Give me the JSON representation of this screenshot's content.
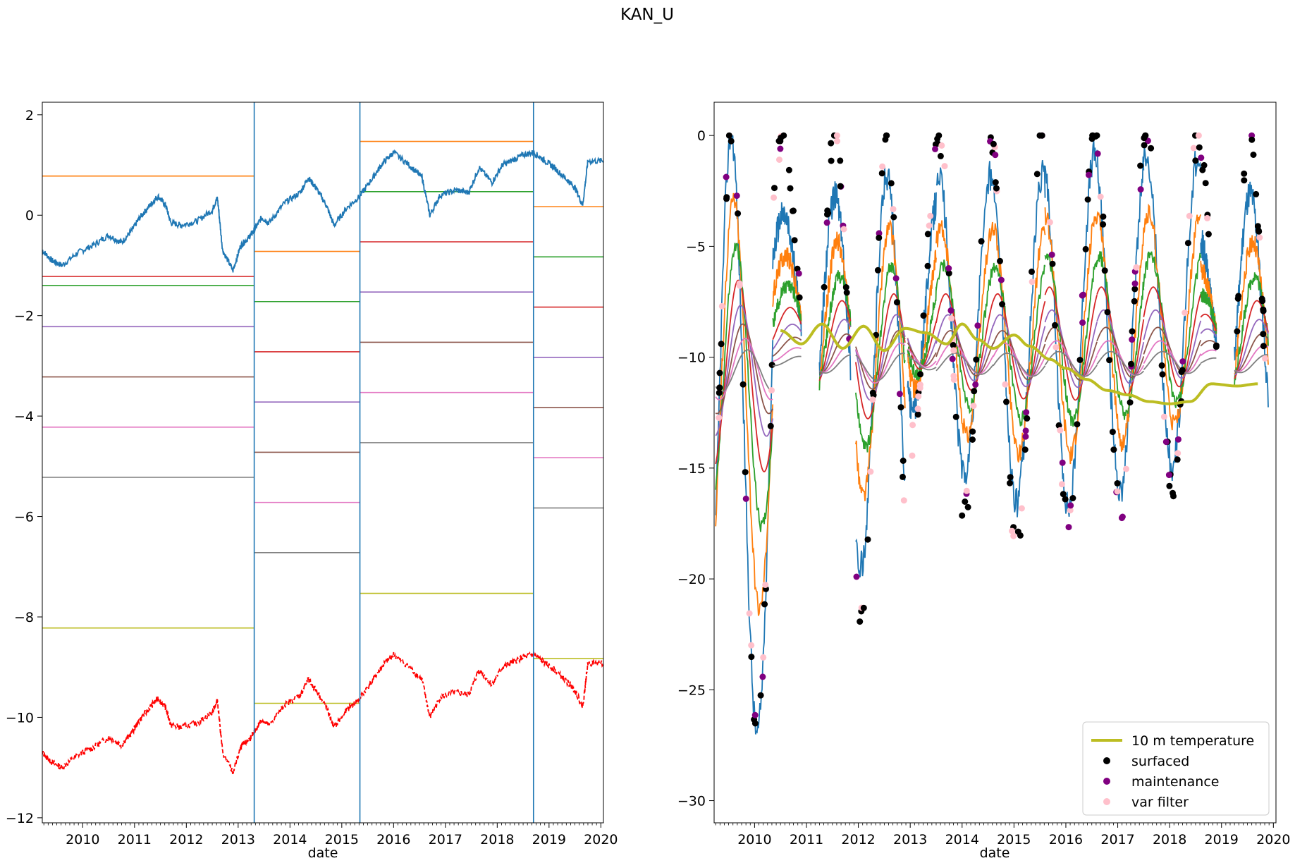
{
  "figure": {
    "title": "KAN_U"
  },
  "chart_data": [
    {
      "type": "line",
      "title": "",
      "xlabel": "date",
      "ylabel": "",
      "xlim": [
        2009.22,
        2020.05
      ],
      "ylim": [
        -12.1,
        2.25
      ],
      "xticks": [
        2010,
        2011,
        2012,
        2013,
        2014,
        2015,
        2016,
        2017,
        2018,
        2019,
        2020
      ],
      "yticks": [
        -12,
        -10,
        -8,
        -6,
        -4,
        -2,
        0,
        2
      ],
      "grid": false,
      "segment_boundaries": [
        2013.31,
        2015.35,
        2018.7
      ],
      "colors": [
        "#ff7f0e",
        "#d62728",
        "#2ca02c",
        "#9467bd",
        "#8c564b",
        "#e377c2",
        "#7f7f7f",
        "#bcbd22"
      ],
      "boundary_color": "#1f77b4",
      "surface_color": "#1f77b4",
      "ten_m_color": "#ff0000",
      "depth_segments": [
        {
          "start": 2009.22,
          "end": 2013.31,
          "levels": [
            0.78,
            -1.22,
            -1.4,
            -2.22,
            -3.22,
            -4.22,
            -5.22,
            -8.22
          ]
        },
        {
          "start": 2013.31,
          "end": 2015.35,
          "levels": [
            -0.72,
            -2.72,
            -1.72,
            -3.72,
            -4.72,
            -5.72,
            -6.72,
            -9.72
          ]
        },
        {
          "start": 2015.35,
          "end": 2018.7,
          "levels": [
            1.47,
            -0.53,
            0.47,
            -1.53,
            -2.53,
            -3.53,
            -4.53,
            -7.53
          ]
        },
        {
          "start": 2018.7,
          "end": 2020.05,
          "levels": [
            0.17,
            -1.83,
            -0.83,
            -2.83,
            -3.83,
            -4.83,
            -5.83,
            -8.83
          ]
        }
      ],
      "surface_height": {
        "x": [
          2009.22,
          2009.4,
          2009.6,
          2009.9,
          2010.2,
          2010.5,
          2010.75,
          2010.95,
          2011.1,
          2011.3,
          2011.45,
          2011.6,
          2011.7,
          2011.9,
          2012.2,
          2012.5,
          2012.6,
          2012.7,
          2012.9,
          2013.05,
          2013.2,
          2013.31,
          2013.45,
          2013.6,
          2013.9,
          2014.2,
          2014.35,
          2014.5,
          2014.7,
          2014.85,
          2015.1,
          2015.35,
          2015.6,
          2015.8,
          2016.0,
          2016.3,
          2016.55,
          2016.7,
          2016.9,
          2017.2,
          2017.45,
          2017.65,
          2017.9,
          2018.1,
          2018.3,
          2018.5,
          2018.7,
          2018.9,
          2019.1,
          2019.35,
          2019.5,
          2019.65,
          2019.75,
          2020.05
        ],
        "y": [
          -0.7,
          -0.9,
          -1.0,
          -0.75,
          -0.6,
          -0.4,
          -0.55,
          -0.3,
          -0.05,
          0.2,
          0.38,
          0.2,
          -0.15,
          -0.2,
          -0.12,
          0.1,
          0.35,
          -0.7,
          -1.1,
          -0.6,
          -0.45,
          -0.3,
          -0.05,
          -0.15,
          0.25,
          0.45,
          0.75,
          0.55,
          0.2,
          -0.2,
          0.15,
          0.38,
          0.75,
          1.05,
          1.25,
          1.0,
          0.75,
          0.0,
          0.4,
          0.5,
          0.45,
          0.95,
          0.65,
          1.0,
          1.1,
          1.2,
          1.25,
          1.1,
          0.95,
          0.7,
          0.55,
          0.2,
          1.08,
          1.08
        ]
      },
      "ten_m_depth_line": {
        "x": [
          2009.22,
          2009.4,
          2009.6,
          2009.9,
          2010.2,
          2010.5,
          2010.75,
          2010.95,
          2011.1,
          2011.3,
          2011.45,
          2011.6,
          2011.7,
          2011.9,
          2012.2,
          2012.5,
          2012.6,
          2012.7,
          2012.9,
          2013.05,
          2013.2,
          2013.31,
          2013.45,
          2013.6,
          2013.9,
          2014.2,
          2014.35,
          2014.5,
          2014.7,
          2014.85,
          2015.1,
          2015.35,
          2015.6,
          2015.8,
          2016.0,
          2016.3,
          2016.55,
          2016.7,
          2016.9,
          2017.2,
          2017.45,
          2017.65,
          2017.9,
          2018.1,
          2018.3,
          2018.5,
          2018.7,
          2018.9,
          2019.1,
          2019.35,
          2019.5,
          2019.65,
          2019.75,
          2020.05
        ],
        "y": [
          -10.7,
          -10.9,
          -11.0,
          -10.75,
          -10.6,
          -10.4,
          -10.55,
          -10.3,
          -10.05,
          -9.8,
          -9.62,
          -9.8,
          -10.15,
          -10.2,
          -10.12,
          -9.9,
          -9.65,
          -10.7,
          -11.1,
          -10.6,
          -10.45,
          -10.3,
          -10.05,
          -10.15,
          -9.75,
          -9.55,
          -9.25,
          -9.45,
          -9.8,
          -10.2,
          -9.85,
          -9.62,
          -9.25,
          -8.95,
          -8.75,
          -9.0,
          -9.25,
          -10.0,
          -9.6,
          -9.5,
          -9.55,
          -9.05,
          -9.35,
          -9.0,
          -8.9,
          -8.8,
          -8.75,
          -8.9,
          -9.05,
          -9.3,
          -9.45,
          -9.8,
          -8.92,
          -8.92
        ]
      }
    },
    {
      "type": "line",
      "title": "",
      "xlabel": "date",
      "ylabel": "",
      "xlim": [
        2009.22,
        2020.05
      ],
      "ylim": [
        -31.0,
        1.5
      ],
      "xticks": [
        2010,
        2011,
        2012,
        2013,
        2014,
        2015,
        2016,
        2017,
        2018,
        2019,
        2020
      ],
      "yticks": [
        -30,
        -25,
        -20,
        -15,
        -10,
        -5,
        0
      ],
      "grid": false,
      "legend": {
        "position": "lower-right",
        "entries": [
          {
            "label": "10 m temperature",
            "kind": "line",
            "color": "#bcbd22"
          },
          {
            "label": "surfaced",
            "kind": "dot",
            "color": "#000000"
          },
          {
            "label": "maintenance",
            "kind": "dot",
            "color": "#800080"
          },
          {
            "label": "var filter",
            "kind": "dot",
            "color": "#ffc0cb"
          }
        ]
      },
      "season_windows": [
        {
          "start": 2009.25,
          "end": 2010.35,
          "cold_min": -27.0,
          "amp": 1.0
        },
        {
          "start": 2010.35,
          "end": 2010.9,
          "cold_min": -10.0,
          "amp": 0.6
        },
        {
          "start": 2011.25,
          "end": 2011.85,
          "cold_min": -16.8,
          "amp": 0.7
        },
        {
          "start": 2011.95,
          "end": 2012.9,
          "cold_min": -22.0,
          "amp": 0.8
        },
        {
          "start": 2012.95,
          "end": 2013.5,
          "cold_min": -13.8,
          "amp": 0.7
        },
        {
          "start": 2013.5,
          "end": 2014.6,
          "cold_min": -17.0,
          "amp": 0.8
        },
        {
          "start": 2014.6,
          "end": 2015.6,
          "cold_min": -18.5,
          "amp": 0.8
        },
        {
          "start": 2015.6,
          "end": 2016.6,
          "cold_min": -17.7,
          "amp": 0.9
        },
        {
          "start": 2016.6,
          "end": 2017.5,
          "cold_min": -16.8,
          "amp": 0.9
        },
        {
          "start": 2017.5,
          "end": 2018.6,
          "cold_min": -15.6,
          "amp": 0.9
        },
        {
          "start": 2018.6,
          "end": 2018.9,
          "cold_min": -12.0,
          "amp": 0.5
        },
        {
          "start": 2019.25,
          "end": 2019.9,
          "cold_min": -16.4,
          "amp": 0.7
        }
      ],
      "ten_m_temperature": {
        "x": [
          2010.5,
          2010.9,
          2011.3,
          2011.7,
          2012.1,
          2012.5,
          2012.9,
          2013.3,
          2013.7,
          2014.0,
          2014.3,
          2014.6,
          2015.0,
          2015.3,
          2015.7,
          2016.0,
          2016.4,
          2016.8,
          2017.2,
          2017.6,
          2018.0,
          2018.4,
          2018.8,
          2019.3,
          2019.7
        ],
        "y": [
          -8.8,
          -9.4,
          -8.5,
          -9.6,
          -8.6,
          -9.7,
          -8.7,
          -8.9,
          -9.4,
          -8.5,
          -9.2,
          -9.6,
          -9.0,
          -9.5,
          -10.1,
          -10.5,
          -11.0,
          -11.5,
          -11.7,
          -12.0,
          -12.1,
          -12.0,
          -11.2,
          -11.3,
          -11.2
        ]
      },
      "series_colors": [
        "#1f77b4",
        "#ff7f0e",
        "#2ca02c",
        "#d62728",
        "#9467bd",
        "#8c564b",
        "#e377c2",
        "#7f7f7f"
      ]
    }
  ]
}
